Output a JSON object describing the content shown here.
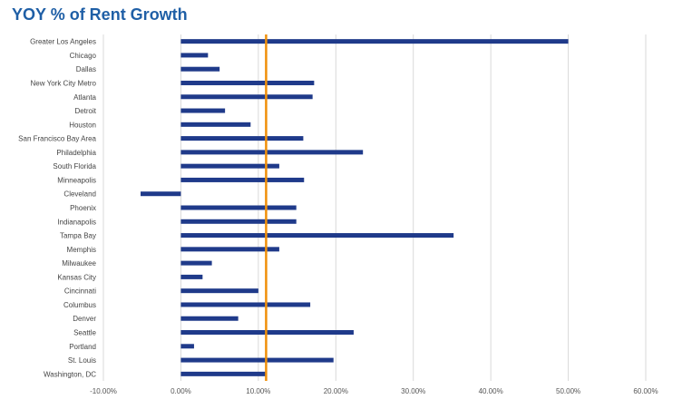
{
  "chart_data": {
    "type": "bar",
    "orientation": "horizontal",
    "title": "YOY % of Rent Growth",
    "categories": [
      "Greater Los Angeles",
      "Chicago",
      "Dallas",
      "New York City Metro",
      "Atlanta",
      "Detroit",
      "Houston",
      "San Francisco Bay Area",
      "Philadelphia",
      "South Florida",
      "Minneapolis",
      "Cleveland",
      "Phoenix",
      "Indianapolis",
      "Tampa Bay",
      "Memphis",
      "Milwaukee",
      "Kansas City",
      "Cincinnati",
      "Columbus",
      "Denver",
      "Seattle",
      "Portland",
      "St. Louis",
      "Washington, DC"
    ],
    "values": [
      50.0,
      3.5,
      5.0,
      17.2,
      17.0,
      5.7,
      9.0,
      15.8,
      23.5,
      12.7,
      15.9,
      -5.2,
      14.9,
      14.9,
      35.2,
      12.7,
      4.0,
      2.8,
      10.0,
      16.7,
      7.4,
      22.3,
      1.7,
      19.7,
      10.9
    ],
    "reference_line": 11.0,
    "xlim": [
      -10,
      60
    ],
    "xticks": [
      -10,
      0,
      10,
      20,
      30,
      40,
      50,
      60
    ],
    "xtick_labels": [
      "-10.00%",
      "0.00%",
      "10.00%",
      "20.00%",
      "30.00%",
      "40.00%",
      "50.00%",
      "60.00%"
    ],
    "grid": true,
    "colors": {
      "bar": "#1f3a8a",
      "reference_line": "#f0900a",
      "grid": "#d9d9d9",
      "title": "#1f5fa6"
    }
  }
}
